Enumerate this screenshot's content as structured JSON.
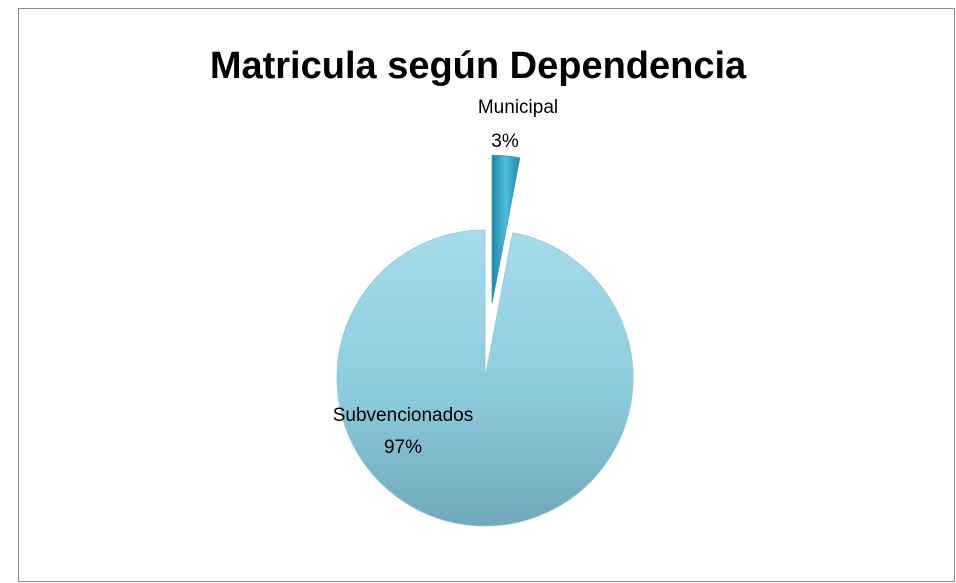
{
  "chart_data": {
    "type": "pie",
    "title": "Matricula según Dependencia",
    "categories": [
      "Municipal",
      "Subvencionados"
    ],
    "values": [
      3,
      97
    ],
    "value_labels": [
      "3%",
      "97%"
    ],
    "colors": [
      "#2a9fbf",
      "#8ccbdc"
    ],
    "exploded": [
      true,
      false
    ]
  }
}
